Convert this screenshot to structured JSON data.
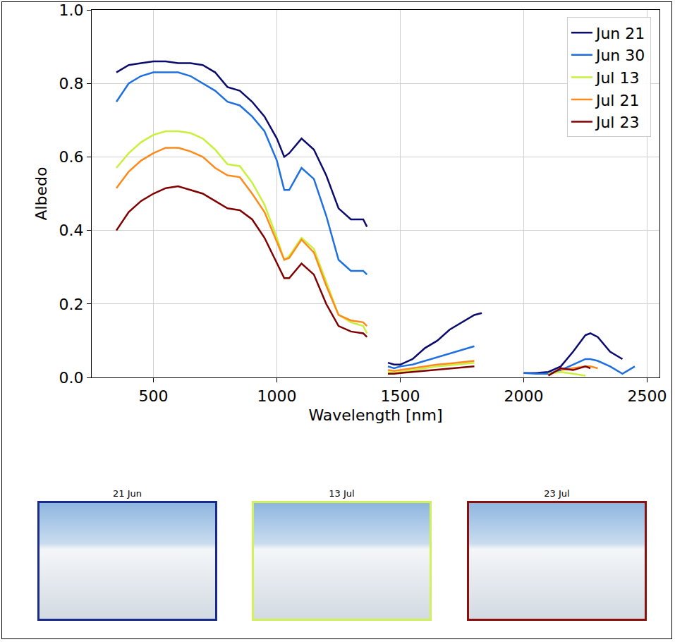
{
  "chart_data": {
    "type": "line",
    "x_label": "Wavelength [nm]",
    "y_label": "Albedo",
    "x": [
      350,
      400,
      450,
      500,
      550,
      600,
      650,
      700,
      750,
      800,
      850,
      900,
      950,
      1000,
      1030,
      1050,
      1100,
      1150,
      1200,
      1250,
      1300,
      1350,
      1365,
      1400,
      1450,
      1475,
      1500,
      1550,
      1600,
      1650,
      1700,
      1750,
      1800,
      1830,
      1900,
      2000,
      2050,
      2100,
      2150,
      2200,
      2250,
      2270,
      2300,
      2350,
      2400,
      2450
    ],
    "series": [
      {
        "name": "Jun 21",
        "color": "#0b0b6e",
        "values": [
          0.83,
          0.85,
          0.855,
          0.86,
          0.86,
          0.855,
          0.855,
          0.85,
          0.83,
          0.79,
          0.78,
          0.75,
          0.71,
          0.65,
          0.6,
          0.61,
          0.65,
          0.62,
          0.55,
          0.46,
          0.43,
          0.43,
          0.41,
          null,
          0.04,
          0.035,
          0.035,
          0.05,
          0.08,
          0.1,
          0.13,
          0.15,
          0.17,
          0.175,
          null,
          0.012,
          0.012,
          0.015,
          0.03,
          0.07,
          0.115,
          0.12,
          0.11,
          0.07,
          0.05,
          null
        ]
      },
      {
        "name": "Jun 30",
        "color": "#1e6fe0",
        "values": [
          0.75,
          0.8,
          0.82,
          0.83,
          0.83,
          0.83,
          0.82,
          0.8,
          0.78,
          0.75,
          0.74,
          0.71,
          0.67,
          0.59,
          0.51,
          0.51,
          0.57,
          0.54,
          0.44,
          0.32,
          0.29,
          0.29,
          0.28,
          null,
          0.03,
          0.025,
          0.03,
          0.035,
          0.045,
          0.055,
          0.065,
          0.075,
          0.085,
          null,
          null,
          0.012,
          0.01,
          0.01,
          0.02,
          0.035,
          0.05,
          0.05,
          0.045,
          0.03,
          0.01,
          0.03
        ]
      },
      {
        "name": "Jul 13",
        "color": "#c8f03c",
        "values": [
          0.57,
          0.61,
          0.64,
          0.66,
          0.67,
          0.67,
          0.665,
          0.65,
          0.62,
          0.58,
          0.575,
          0.53,
          0.47,
          0.38,
          0.32,
          0.33,
          0.38,
          0.35,
          0.26,
          0.17,
          0.15,
          0.14,
          0.12,
          null,
          0.015,
          0.012,
          0.015,
          0.02,
          0.025,
          0.03,
          0.033,
          0.036,
          0.04,
          null,
          null,
          null,
          null,
          0.01,
          0.015,
          0.01,
          0.005,
          null,
          null,
          null,
          null,
          null
        ]
      },
      {
        "name": "Jul 21",
        "color": "#ff8a1c",
        "values": [
          0.515,
          0.56,
          0.59,
          0.61,
          0.625,
          0.625,
          0.615,
          0.6,
          0.57,
          0.55,
          0.545,
          0.5,
          0.45,
          0.37,
          0.32,
          0.325,
          0.375,
          0.34,
          0.25,
          0.17,
          0.155,
          0.15,
          0.14,
          null,
          0.02,
          0.018,
          0.02,
          0.025,
          0.03,
          0.035,
          0.038,
          0.042,
          0.045,
          null,
          null,
          null,
          null,
          null,
          0.02,
          0.025,
          0.03,
          0.03,
          0.025,
          null,
          null,
          null
        ]
      },
      {
        "name": "Jul 23",
        "color": "#800000",
        "values": [
          0.4,
          0.45,
          0.48,
          0.5,
          0.515,
          0.52,
          0.51,
          0.5,
          0.48,
          0.46,
          0.455,
          0.43,
          0.38,
          0.31,
          0.27,
          0.27,
          0.31,
          0.28,
          0.2,
          0.14,
          0.125,
          0.12,
          0.11,
          null,
          0.01,
          0.01,
          0.012,
          0.015,
          0.018,
          0.022,
          0.025,
          0.028,
          0.03,
          null,
          null,
          null,
          null,
          0.005,
          0.025,
          0.02,
          0.03,
          0.025,
          null,
          null,
          null,
          null
        ]
      }
    ],
    "xlim": [
      250,
      2550
    ],
    "xticks": [
      500,
      1000,
      1500,
      2000,
      2500
    ],
    "ylim": [
      0,
      1
    ],
    "yticks": [
      {
        "value": 0,
        "label": "0.0"
      },
      {
        "value": 0.2,
        "label": "0.2"
      },
      {
        "value": 0.4,
        "label": "0.4"
      },
      {
        "value": 0.6,
        "label": "0.6"
      },
      {
        "value": 0.8,
        "label": "0.8"
      },
      {
        "value": 1,
        "label": "1.0"
      }
    ],
    "grid": true,
    "legend": "upper right",
    "photos": [
      {
        "caption": "21 Jun",
        "color": "#1a2a8a"
      },
      {
        "caption": "13 Jul",
        "color": "#d2f05a"
      },
      {
        "caption": "23 Jul",
        "color": "#8a1010"
      }
    ]
  }
}
